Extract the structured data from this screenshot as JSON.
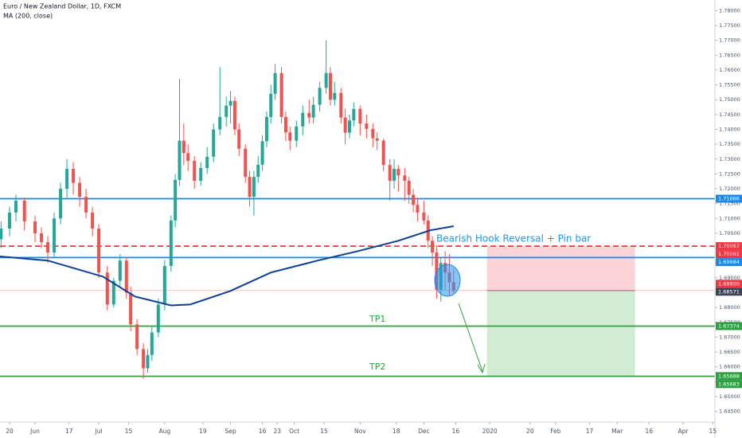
{
  "chart_data": {
    "type": "candlestick",
    "title": "Euro / New Zealand Dollar, 1D, FXCM",
    "indicator_label": "MA (200, close)",
    "colors": {
      "up": "#26a69a",
      "down": "#ef5350",
      "ma": "#0d3f94"
    },
    "grid": false,
    "xlim": [
      -4.5,
      332
    ],
    "ylim": [
      1.6414,
      1.7836
    ],
    "xticks": [
      {
        "value": 0,
        "label": "20"
      },
      {
        "value": 12,
        "label": "Jun"
      },
      {
        "value": 28,
        "label": "17"
      },
      {
        "value": 42,
        "label": "Jul"
      },
      {
        "value": 56,
        "label": "15"
      },
      {
        "value": 73,
        "label": "Aug"
      },
      {
        "value": 91,
        "label": "19"
      },
      {
        "value": 104,
        "label": "Sep"
      },
      {
        "value": 119,
        "label": "16"
      },
      {
        "value": 126,
        "label": "23"
      },
      {
        "value": 134,
        "label": "Oct"
      },
      {
        "value": 148,
        "label": "15"
      },
      {
        "value": 165,
        "label": "Nov"
      },
      {
        "value": 182,
        "label": "18"
      },
      {
        "value": 195,
        "label": "Dec"
      },
      {
        "value": 210,
        "label": "16"
      },
      {
        "value": 226,
        "label": "2020"
      },
      {
        "value": 245,
        "label": "20"
      },
      {
        "value": 257,
        "label": "Feb"
      },
      {
        "value": 273,
        "label": "17"
      },
      {
        "value": 286,
        "label": "Mar"
      },
      {
        "value": 301,
        "label": "16"
      },
      {
        "value": 317,
        "label": "Apr"
      },
      {
        "value": 331,
        "label": "15"
      }
    ],
    "yticks": [
      {
        "value": 1.645,
        "label": "1.64500"
      },
      {
        "value": 1.65,
        "label": "1.65000"
      },
      {
        "value": 1.655,
        "label": "1.65500"
      },
      {
        "value": 1.66,
        "label": "1.66000"
      },
      {
        "value": 1.665,
        "label": "1.66500"
      },
      {
        "value": 1.67,
        "label": "1.67000"
      },
      {
        "value": 1.675,
        "label": "1.67500"
      },
      {
        "value": 1.68,
        "label": "1.68000"
      },
      {
        "value": 1.685,
        "label": "1.68500"
      },
      {
        "value": 1.69,
        "label": "1.69000"
      },
      {
        "value": 1.695,
        "label": "1.69500"
      },
      {
        "value": 1.7,
        "label": "1.70000"
      },
      {
        "value": 1.705,
        "label": "1.70500"
      },
      {
        "value": 1.71,
        "label": "1.71000"
      },
      {
        "value": 1.715,
        "label": "1.71500"
      },
      {
        "value": 1.72,
        "label": "1.72000"
      },
      {
        "value": 1.725,
        "label": "1.72500"
      },
      {
        "value": 1.73,
        "label": "1.73000"
      },
      {
        "value": 1.735,
        "label": "1.73500"
      },
      {
        "value": 1.74,
        "label": "1.74000"
      },
      {
        "value": 1.745,
        "label": "1.74500"
      },
      {
        "value": 1.75,
        "label": "1.75000"
      },
      {
        "value": 1.755,
        "label": "1.75500"
      },
      {
        "value": 1.76,
        "label": "1.76000"
      },
      {
        "value": 1.765,
        "label": "1.76500"
      },
      {
        "value": 1.77,
        "label": "1.77000"
      },
      {
        "value": 1.775,
        "label": "1.77500"
      },
      {
        "value": 1.78,
        "label": "1.78000"
      }
    ],
    "ohlc": [
      [
        -4,
        1.703,
        1.709,
        1.7,
        1.7066
      ],
      [
        0,
        1.7066,
        1.714,
        1.704,
        1.712
      ],
      [
        3,
        1.712,
        1.718,
        1.709,
        1.716
      ],
      [
        7,
        1.716,
        1.717,
        1.706,
        1.709
      ],
      [
        12,
        1.709,
        1.711,
        1.702,
        1.705
      ],
      [
        15,
        1.705,
        1.707,
        1.7,
        1.702
      ],
      [
        18,
        1.702,
        1.704,
        1.695,
        1.6985
      ],
      [
        21,
        1.6985,
        1.712,
        1.697,
        1.71
      ],
      [
        24,
        1.71,
        1.722,
        1.708,
        1.72
      ],
      [
        27,
        1.72,
        1.73,
        1.717,
        1.7267
      ],
      [
        30,
        1.7267,
        1.729,
        1.718,
        1.722
      ],
      [
        33,
        1.722,
        1.724,
        1.714,
        1.7173
      ],
      [
        36,
        1.7173,
        1.72,
        1.71,
        1.712
      ],
      [
        39,
        1.712,
        1.714,
        1.704,
        1.7066
      ],
      [
        42,
        1.7066,
        1.708,
        1.69,
        1.6918
      ],
      [
        46,
        1.6918,
        1.694,
        1.679,
        1.681
      ],
      [
        49,
        1.681,
        1.69,
        1.68,
        1.689
      ],
      [
        52,
        1.689,
        1.698,
        1.687,
        1.6958
      ],
      [
        55,
        1.6958,
        1.697,
        1.683,
        1.685
      ],
      [
        57,
        1.685,
        1.687,
        1.672,
        1.6743
      ],
      [
        60,
        1.6743,
        1.676,
        1.664,
        1.666
      ],
      [
        63,
        1.666,
        1.668,
        1.656,
        1.6595
      ],
      [
        65,
        1.6595,
        1.666,
        1.658,
        1.664
      ],
      [
        67,
        1.664,
        1.674,
        1.662,
        1.6716
      ],
      [
        70,
        1.6716,
        1.683,
        1.67,
        1.681
      ],
      [
        73,
        1.681,
        1.696,
        1.679,
        1.694
      ],
      [
        76,
        1.694,
        1.711,
        1.692,
        1.7093
      ],
      [
        78,
        1.7093,
        1.725,
        1.707,
        1.723
      ],
      [
        80,
        1.723,
        1.757,
        1.721,
        1.7362
      ],
      [
        82,
        1.7362,
        1.742,
        1.728,
        1.732
      ],
      [
        84,
        1.732,
        1.735,
        1.726,
        1.7294
      ],
      [
        87,
        1.7294,
        1.731,
        1.72,
        1.7227
      ],
      [
        90,
        1.7227,
        1.729,
        1.721,
        1.727
      ],
      [
        93,
        1.727,
        1.734,
        1.725,
        1.7308
      ],
      [
        96,
        1.7308,
        1.742,
        1.729,
        1.74
      ],
      [
        99,
        1.74,
        1.761,
        1.738,
        1.7442
      ],
      [
        102,
        1.7442,
        1.751,
        1.741,
        1.748
      ],
      [
        104,
        1.748,
        1.753,
        1.742,
        1.7496
      ],
      [
        106,
        1.7496,
        1.751,
        1.738,
        1.74
      ],
      [
        108,
        1.74,
        1.742,
        1.731,
        1.7335
      ],
      [
        111,
        1.7335,
        1.735,
        1.722,
        1.724
      ],
      [
        113,
        1.724,
        1.726,
        1.714,
        1.7173
      ],
      [
        115,
        1.7173,
        1.726,
        1.711,
        1.724
      ],
      [
        117,
        1.724,
        1.731,
        1.722,
        1.7281
      ],
      [
        119,
        1.7281,
        1.738,
        1.726,
        1.736
      ],
      [
        121,
        1.736,
        1.746,
        1.734,
        1.7442
      ],
      [
        123,
        1.7442,
        1.755,
        1.742,
        1.752
      ],
      [
        125,
        1.752,
        1.762,
        1.75,
        1.759
      ],
      [
        128,
        1.759,
        1.761,
        1.742,
        1.7442
      ],
      [
        130,
        1.7442,
        1.746,
        1.736,
        1.739
      ],
      [
        132,
        1.739,
        1.741,
        1.733,
        1.7362
      ],
      [
        135,
        1.7362,
        1.743,
        1.734,
        1.741
      ],
      [
        138,
        1.741,
        1.748,
        1.738,
        1.7456
      ],
      [
        141,
        1.7456,
        1.75,
        1.742,
        1.744
      ],
      [
        143,
        1.744,
        1.751,
        1.742,
        1.7483
      ],
      [
        146,
        1.7483,
        1.756,
        1.746,
        1.754
      ],
      [
        149,
        1.754,
        1.77,
        1.752,
        1.759
      ],
      [
        151,
        1.759,
        1.761,
        1.748,
        1.75
      ],
      [
        153,
        1.75,
        1.756,
        1.748,
        1.7523
      ],
      [
        156,
        1.7523,
        1.754,
        1.742,
        1.744
      ],
      [
        158,
        1.744,
        1.747,
        1.735,
        1.7389
      ],
      [
        160,
        1.7389,
        1.745,
        1.737,
        1.743
      ],
      [
        162,
        1.743,
        1.749,
        1.741,
        1.7469
      ],
      [
        165,
        1.7469,
        1.748,
        1.738,
        1.742
      ],
      [
        168,
        1.742,
        1.745,
        1.737,
        1.7402
      ],
      [
        171,
        1.7402,
        1.742,
        1.734,
        1.737
      ],
      [
        173,
        1.737,
        1.739,
        1.733,
        1.7362
      ],
      [
        176,
        1.7362,
        1.737,
        1.726,
        1.728
      ],
      [
        179,
        1.728,
        1.73,
        1.716,
        1.7227
      ],
      [
        181,
        1.7227,
        1.73,
        1.72,
        1.7267
      ],
      [
        183,
        1.7267,
        1.728,
        1.719,
        1.7245
      ],
      [
        186,
        1.7245,
        1.727,
        1.716,
        1.7227
      ],
      [
        188,
        1.7227,
        1.724,
        1.715,
        1.718
      ],
      [
        190,
        1.718,
        1.72,
        1.712,
        1.7146
      ],
      [
        192,
        1.7146,
        1.717,
        1.709,
        1.712
      ],
      [
        195,
        1.712,
        1.716,
        1.708,
        1.7093
      ],
      [
        197,
        1.7093,
        1.711,
        1.7,
        1.7025
      ],
      [
        199,
        1.7025,
        1.704,
        1.694,
        1.6985
      ],
      [
        201,
        1.6985,
        1.701,
        1.683,
        1.686
      ],
      [
        203,
        1.686,
        1.697,
        1.682,
        1.695
      ],
      [
        205,
        1.695,
        1.699,
        1.686,
        1.6918
      ],
      [
        207,
        1.6918,
        1.698,
        1.684,
        1.6885
      ],
      [
        209,
        1.6885,
        1.693,
        1.685,
        1.68571
      ]
    ],
    "ma": {
      "x": [
        -4.5,
        18,
        44,
        59,
        76,
        85,
        104,
        123,
        145,
        164,
        183,
        198,
        209
      ],
      "values": [
        1.6972,
        1.6958,
        1.6904,
        1.6837,
        1.6807,
        1.681,
        1.6856,
        1.6918,
        1.6958,
        1.699,
        1.7025,
        1.706,
        1.7074
      ]
    },
    "levels": [
      {
        "value": 1.71666,
        "label": "1.71666",
        "color": "#1e88e5",
        "style": "solid"
      },
      {
        "value": 1.70067,
        "label": "1.70067",
        "color": "#f23645",
        "style": "dashed"
      },
      {
        "value": 1.70061,
        "label": "1.70061",
        "color": "#f23645",
        "style": "none"
      },
      {
        "value": 1.69684,
        "label": "1.69684",
        "color": "#1e88e5",
        "style": "solid"
      },
      {
        "value": 1.688,
        "label": "1.68800",
        "color": "#f23645",
        "style": "none"
      },
      {
        "value": 1.68571,
        "label": "1.68571",
        "color": "#3d4456",
        "style": "thin"
      },
      {
        "value": 1.67374,
        "label": "1.67374",
        "color": "#2ea043",
        "style": "solid"
      },
      {
        "value": 1.65683,
        "label": "1.65683",
        "color": "#2ea043",
        "style": "solid"
      },
      {
        "value": 1.65688,
        "label": "1.65688",
        "color": "#2ea043",
        "style": "none"
      }
    ],
    "position": {
      "x0": 224.7,
      "x1": 294.4,
      "entry": 1.68571,
      "stop": 1.70067,
      "target": 1.65683
    },
    "annotations": [
      "Bearish Hook Reversal + Pin bar",
      "TP1",
      "TP2"
    ]
  }
}
